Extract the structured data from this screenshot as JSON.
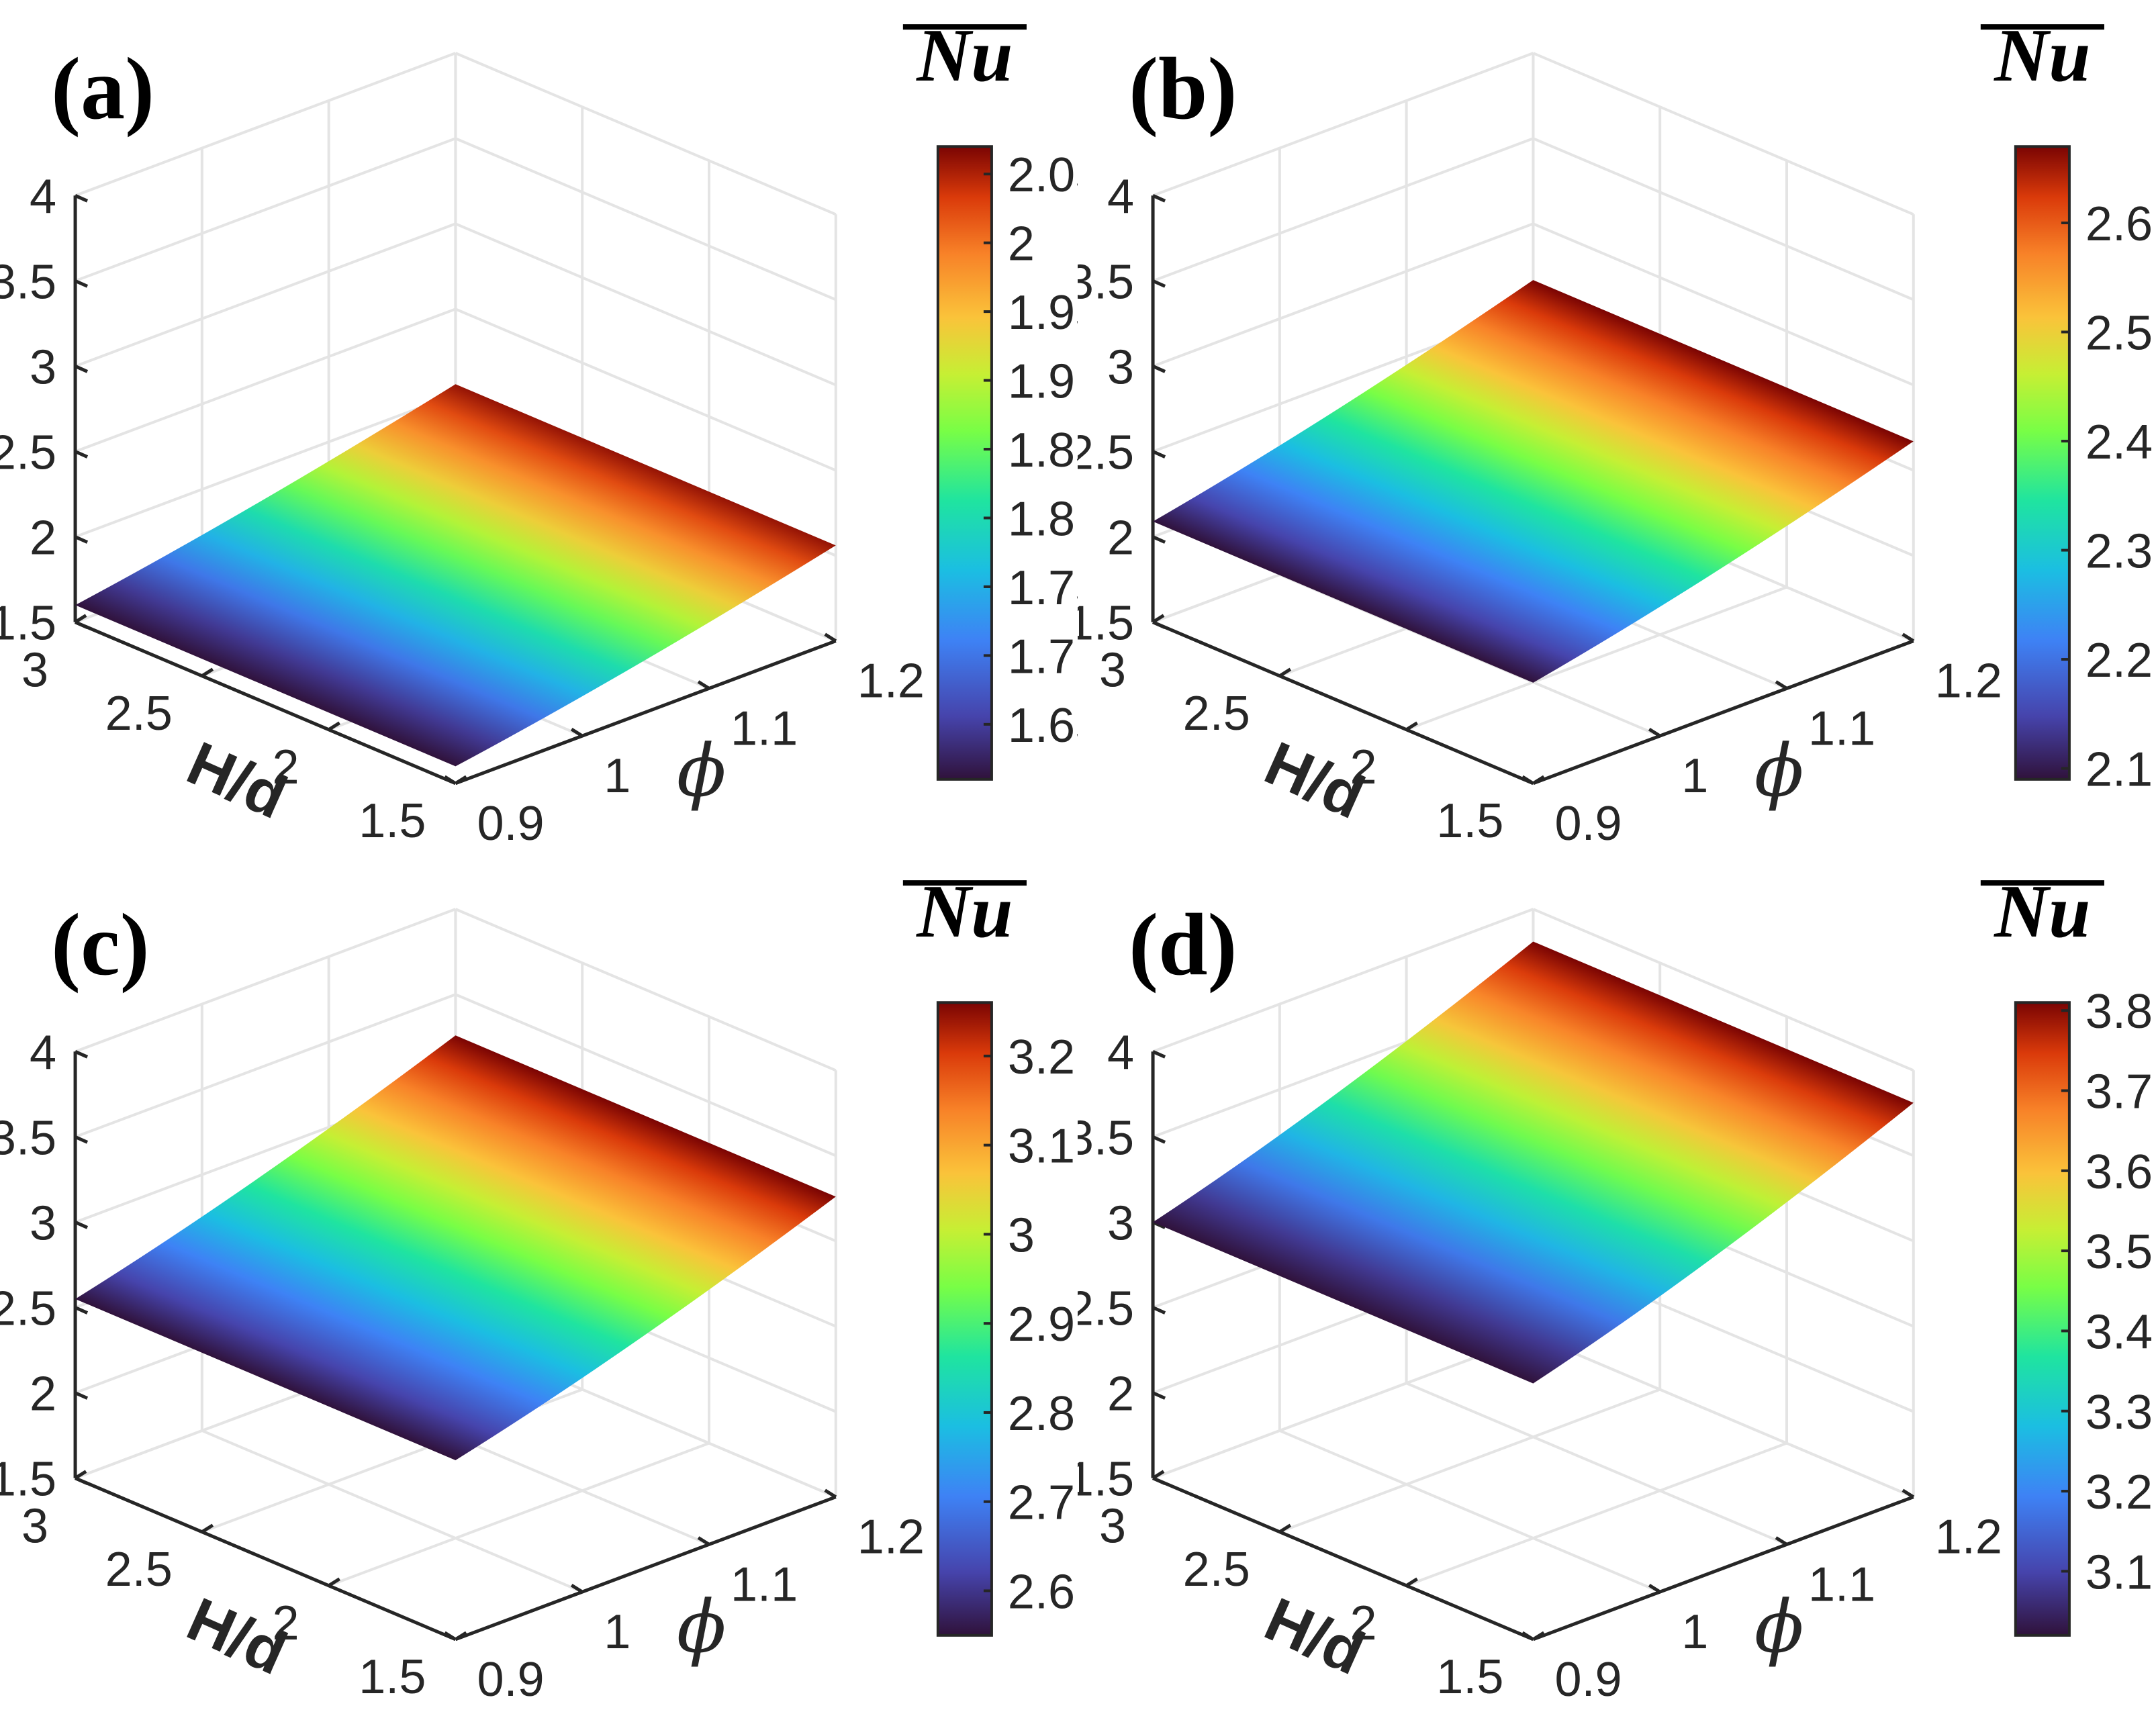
{
  "figure": {
    "panels": [
      {
        "label": "(a)",
        "colorbar_title": "Nu",
        "colorbar_ticks": [
          "1.65",
          "1.7",
          "1.75",
          "1.8",
          "1.85",
          "1.9",
          "1.95",
          "2",
          "2.05"
        ]
      },
      {
        "label": "(b)",
        "colorbar_title": "Nu",
        "colorbar_ticks": [
          "2.1",
          "2.2",
          "2.3",
          "2.4",
          "2.5",
          "2.6"
        ]
      },
      {
        "label": "(c)",
        "colorbar_title": "Nu",
        "colorbar_ticks": [
          "2.6",
          "2.7",
          "2.8",
          "2.9",
          "3",
          "3.1",
          "3.2"
        ]
      },
      {
        "label": "(d)",
        "colorbar_title": "Nu",
        "colorbar_ticks": [
          "3.1",
          "3.2",
          "3.3",
          "3.4",
          "3.5",
          "3.6",
          "3.7",
          "3.8"
        ]
      }
    ],
    "z_ticks": [
      "1.5",
      "2",
      "2.5",
      "3",
      "3.5",
      "4"
    ],
    "hd_ticks": [
      "3",
      "2.5",
      "2",
      "1.5"
    ],
    "phi_ticks": [
      "0.9",
      "1",
      "1.1",
      "1.2"
    ],
    "xlabel": "H/d",
    "ylabel": "ϕ"
  },
  "chart_data": [
    {
      "type": "surface",
      "panel": "(a)",
      "x_name": "H/d",
      "x_range": [
        1.5,
        3
      ],
      "y_name": "ϕ",
      "y_range": [
        0.9,
        1.2
      ],
      "z_range": [
        1.5,
        4
      ],
      "z_corners": {
        "hd3_phi09": 1.6,
        "hd15_phi09": 1.6,
        "hd3_phi12": 2.06,
        "hd15_phi12": 2.06
      },
      "clim": [
        1.61,
        2.07
      ],
      "colorbar_title": "Nu"
    },
    {
      "type": "surface",
      "panel": "(b)",
      "x_name": "H/d",
      "x_range": [
        1.5,
        3
      ],
      "y_name": "ϕ",
      "y_range": [
        0.9,
        1.2
      ],
      "z_range": [
        1.5,
        4
      ],
      "z_corners": {
        "hd3_phi09": 2.09,
        "hd15_phi09": 2.09,
        "hd3_phi12": 2.67,
        "hd15_phi12": 2.67
      },
      "clim": [
        2.09,
        2.67
      ],
      "colorbar_title": "Nu"
    },
    {
      "type": "surface",
      "panel": "(c)",
      "x_name": "H/d",
      "x_range": [
        1.5,
        3
      ],
      "y_name": "ϕ",
      "y_range": [
        0.9,
        1.2
      ],
      "z_range": [
        1.5,
        4
      ],
      "z_corners": {
        "hd3_phi09": 2.55,
        "hd15_phi09": 2.55,
        "hd3_phi12": 3.26,
        "hd15_phi12": 3.26
      },
      "clim": [
        2.55,
        3.26
      ],
      "colorbar_title": "Nu"
    },
    {
      "type": "surface",
      "panel": "(d)",
      "x_name": "H/d",
      "x_range": [
        1.5,
        3
      ],
      "y_name": "ϕ",
      "y_range": [
        0.9,
        1.2
      ],
      "z_range": [
        1.5,
        4
      ],
      "z_corners": {
        "hd3_phi09": 3.0,
        "hd15_phi09": 3.0,
        "hd3_phi12": 3.81,
        "hd15_phi12": 3.81
      },
      "clim": [
        3.02,
        3.81
      ],
      "colorbar_title": "Nu"
    }
  ]
}
